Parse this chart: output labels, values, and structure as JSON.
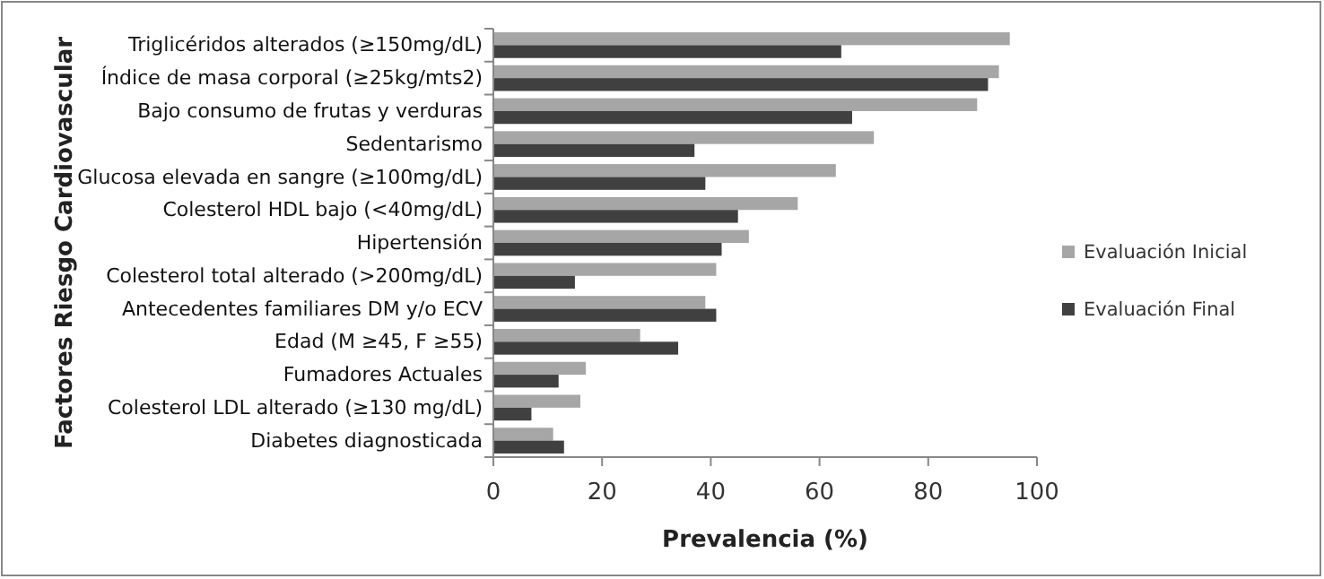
{
  "chart_data": {
    "type": "bar",
    "orientation": "horizontal",
    "xlabel": "Prevalencia (%)",
    "ylabel": "Factores Riesgo Cardiovascular",
    "categories": [
      "Triglicéridos alterados (≥150mg/dL)",
      "Índice de masa corporal (≥25kg/mts2)",
      "Bajo consumo de frutas y verduras",
      "Sedentarismo",
      "Glucosa elevada en sangre (≥100mg/dL)",
      "Colesterol HDL bajo  (<40mg/dL)",
      "Hipertensión",
      "Colesterol total alterado (>200mg/dL)",
      "Antecedentes familiares DM y/o ECV",
      "Edad (M ≥45, F ≥55)",
      "Fumadores Actuales",
      "Colesterol LDL alterado (≥130 mg/dL)",
      "Diabetes diagnosticada"
    ],
    "series": [
      {
        "name": "Evaluación Inicial",
        "color": "#a6a6a6",
        "values": [
          95,
          93,
          89,
          70,
          63,
          56,
          47,
          41,
          39,
          27,
          17,
          16,
          11
        ]
      },
      {
        "name": "Evaluación Final",
        "color": "#404040",
        "values": [
          64,
          91,
          66,
          37,
          39,
          45,
          42,
          15,
          41,
          34,
          12,
          7,
          13
        ]
      }
    ],
    "xlim": [
      0,
      100
    ],
    "xticks": [
      0,
      20,
      40,
      60,
      80,
      100
    ],
    "legend": "right",
    "grid": false
  }
}
